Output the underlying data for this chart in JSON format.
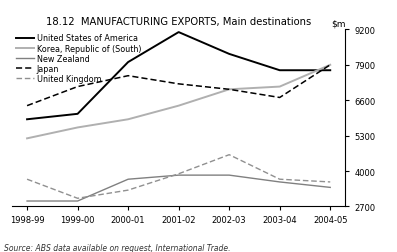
{
  "title": "18.12  MANUFACTURING EXPORTS, Main destinations",
  "source": "Source: ABS data available on request, International Trade.",
  "x_labels": [
    "1998-99",
    "1999-00",
    "2000-01",
    "2001-02",
    "2002-03",
    "2003-04",
    "2004-05"
  ],
  "ylim": [
    2700,
    9200
  ],
  "yticks": [
    2700,
    4000,
    5300,
    6600,
    7900,
    9200
  ],
  "series": [
    {
      "name": "United States of America",
      "color": "#000000",
      "linestyle": "solid",
      "linewidth": 1.4,
      "values": [
        5900,
        6100,
        8000,
        9100,
        8300,
        7700,
        7700
      ]
    },
    {
      "name": "Korea, Republic of (South)",
      "color": "#b0b0b0",
      "linestyle": "solid",
      "linewidth": 1.4,
      "values": [
        5200,
        5600,
        5900,
        6400,
        7000,
        7100,
        7900
      ]
    },
    {
      "name": "New Zealand",
      "color": "#808080",
      "linestyle": "solid",
      "linewidth": 1.0,
      "values": [
        2900,
        2900,
        3700,
        3850,
        3850,
        3600,
        3400
      ]
    },
    {
      "name": "Japan",
      "color": "#000000",
      "linestyle": "dashed",
      "linewidth": 1.1,
      "dashes": [
        4,
        2
      ],
      "values": [
        6400,
        7100,
        7500,
        7200,
        7000,
        6700,
        7900
      ]
    },
    {
      "name": "United Kingdom",
      "color": "#909090",
      "linestyle": "dashed",
      "linewidth": 1.0,
      "dashes": [
        4,
        2
      ],
      "values": [
        3700,
        3000,
        3300,
        3900,
        4600,
        3700,
        3600
      ]
    }
  ]
}
